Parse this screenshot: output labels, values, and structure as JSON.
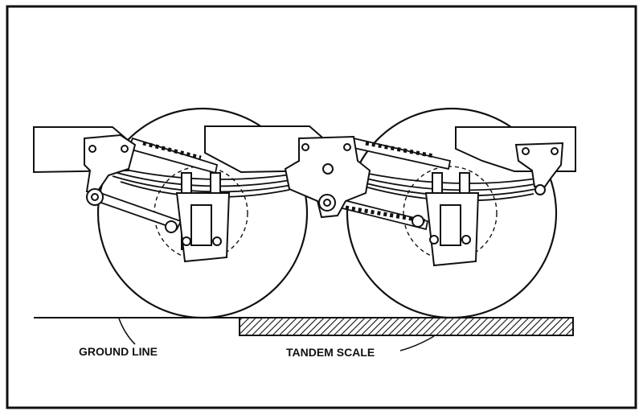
{
  "labels": {
    "ground_line": "GROUND LINE",
    "tandem_scale": "TANDEM SCALE"
  },
  "colors": {
    "ink": "#111111",
    "paper": "#ffffff"
  }
}
